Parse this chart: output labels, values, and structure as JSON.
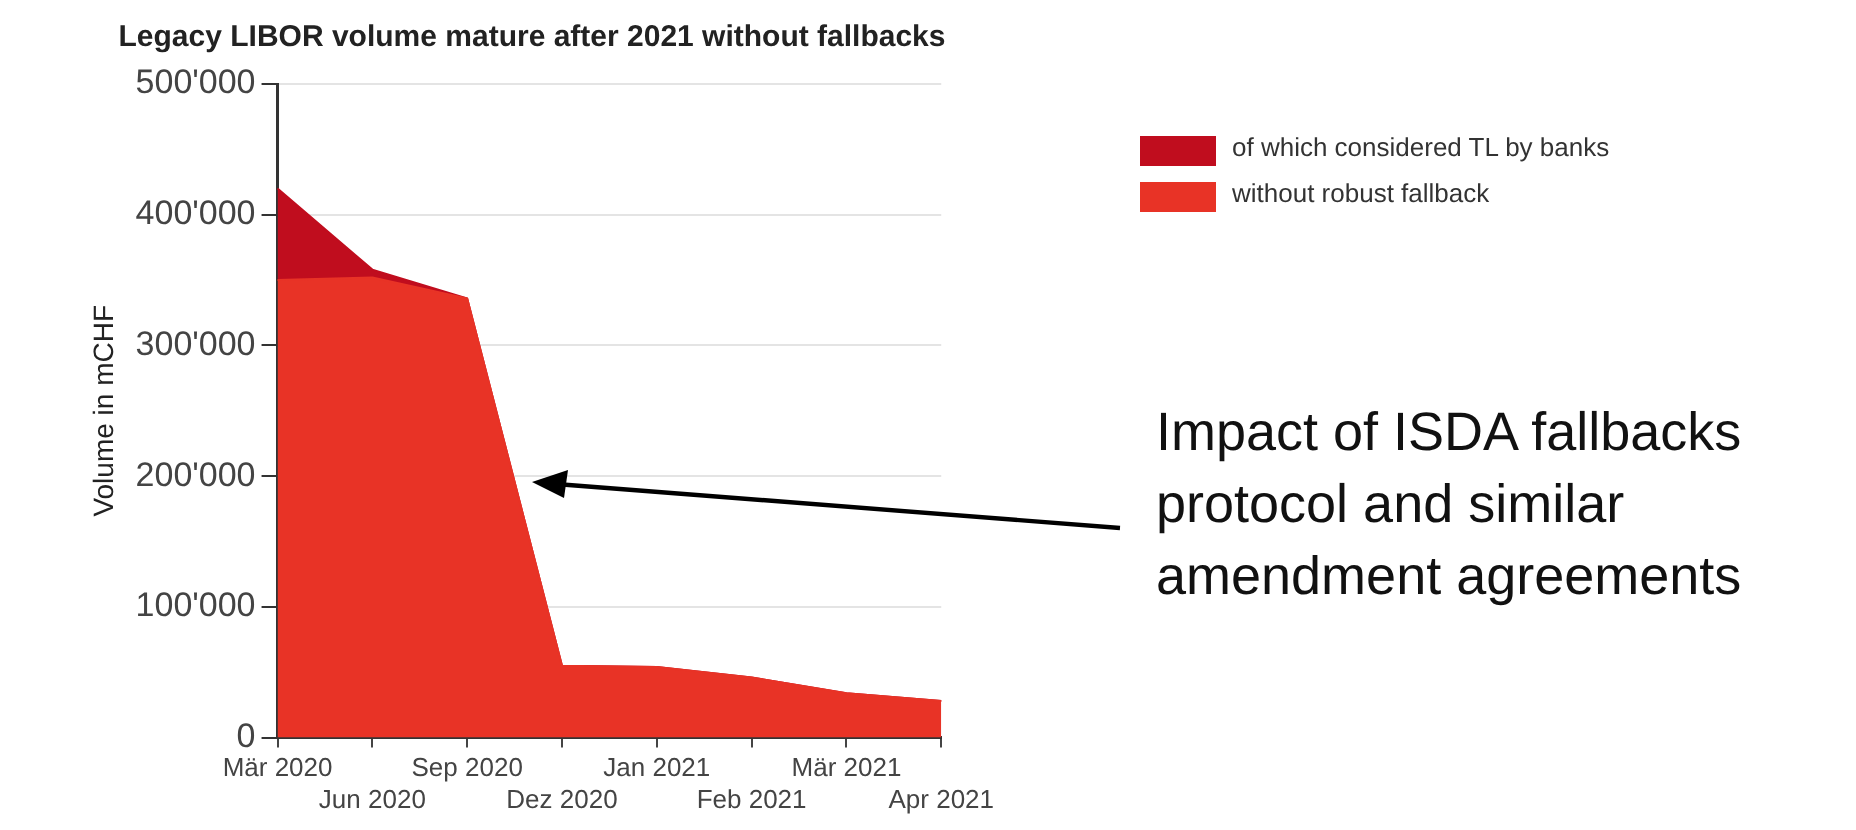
{
  "chart_data": {
    "type": "area",
    "title": "Legacy LIBOR volume mature after 2021 without fallbacks",
    "ylabel": "Volume in mCHF",
    "categories": [
      "Mär 2020",
      "Jun 2020",
      "Sep 2020",
      "Dez 2020",
      "Jan 2021",
      "Feb 2021",
      "Mär 2021",
      "Apr 2021"
    ],
    "stacked": true,
    "series": [
      {
        "name": "without robust fallback",
        "color": "#e83326",
        "values": [
          350000,
          352000,
          336000,
          55000,
          54000,
          46000,
          34000,
          28000
        ]
      },
      {
        "name": "of which considered TL by banks",
        "color": "#c00d1e",
        "values": [
          70000,
          6000,
          0,
          0,
          0,
          0,
          0,
          0
        ]
      }
    ],
    "ylim": [
      0,
      500000
    ],
    "yticks": [
      {
        "value": 0,
        "label": "0"
      },
      {
        "value": 100000,
        "label": "100'000"
      },
      {
        "value": 200000,
        "label": "200'000"
      },
      {
        "value": 300000,
        "label": "300'000"
      },
      {
        "value": 400000,
        "label": "400'000"
      },
      {
        "value": 500000,
        "label": "500'000"
      }
    ],
    "grid": "y",
    "legend": "right",
    "annotations": [
      "Impact of ISDA fallbacks protocol and similar amendment agreements"
    ]
  }
}
